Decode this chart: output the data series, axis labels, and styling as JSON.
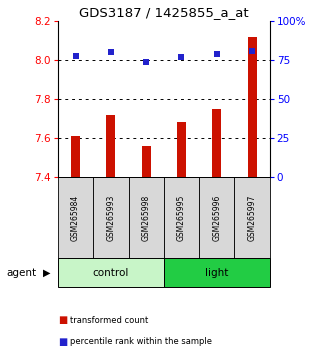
{
  "title": "GDS3187 / 1425855_a_at",
  "samples": [
    "GSM265984",
    "GSM265993",
    "GSM265998",
    "GSM265995",
    "GSM265996",
    "GSM265997"
  ],
  "bar_values": [
    7.61,
    7.72,
    7.56,
    7.68,
    7.75,
    8.12
  ],
  "percentile_values": [
    78,
    80,
    74,
    77,
    79,
    81
  ],
  "ylim_left": [
    7.4,
    8.2
  ],
  "ylim_right": [
    0,
    100
  ],
  "yticks_left": [
    7.4,
    7.6,
    7.8,
    8.0,
    8.2
  ],
  "yticks_right": [
    0,
    25,
    50,
    75,
    100
  ],
  "bar_color": "#cc1100",
  "dot_color": "#2222cc",
  "groups": [
    {
      "label": "control",
      "indices": [
        0,
        1,
        2
      ],
      "color": "#c8f5c8"
    },
    {
      "label": "light",
      "indices": [
        3,
        4,
        5
      ],
      "color": "#22cc44"
    }
  ],
  "agent_label": "agent",
  "legend_bar_label": "transformed count",
  "legend_dot_label": "percentile rank within the sample",
  "grid_color": "#000000",
  "background_label": "#d8d8d8",
  "bar_width": 0.25
}
